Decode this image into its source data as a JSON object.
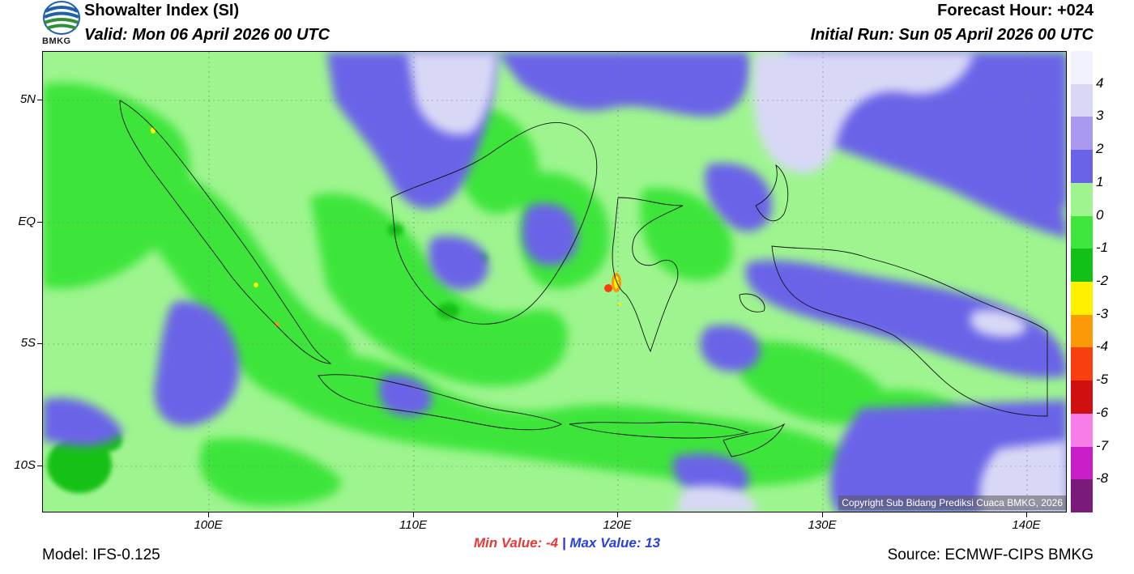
{
  "header": {
    "title": "Showalter Index (SI)",
    "valid": "Valid: Mon 06 April 2026 00 UTC",
    "forecast_hour": "Forecast Hour: +024",
    "initial_run": "Initial Run: Sun 05 April 2026 00 UTC",
    "logo_text": "BMKG"
  },
  "axes": {
    "lat_labels": [
      "5N",
      "EQ",
      "5S",
      "10S"
    ],
    "lon_labels": [
      "100E",
      "110E",
      "120E",
      "130E",
      "140E"
    ]
  },
  "stats": {
    "min_label": "Min Value:  -4",
    "separator": "|",
    "max_label": "Max Value:  13"
  },
  "footer": {
    "model": "Model: IFS-0.125",
    "source": "Source: ECMWF-CIPS BMKG",
    "copyright": "Copyright Sub Bidang Prediksi Cuaca BMKG, 2026"
  },
  "legend": {
    "labels": [
      "4",
      "3",
      "2",
      "1",
      "0",
      "-1",
      "-2",
      "-3",
      "-4",
      "-5",
      "-6",
      "-7",
      "-8"
    ],
    "colors": [
      "#f2f2fc",
      "#d8d8f6",
      "#a99af0",
      "#6a63e8",
      "#9ef58f",
      "#3ee53a",
      "#12c118",
      "#fff000",
      "#fb9a06",
      "#f83f0f",
      "#d01010",
      "#f77ee8",
      "#c81ec8",
      "#7a1a7a"
    ]
  },
  "colors": {
    "sea_base": "#9ef58f",
    "land_green": "#3ee53a",
    "stable_purple": "#6a63e8",
    "stable_light": "#d8d8f6"
  }
}
